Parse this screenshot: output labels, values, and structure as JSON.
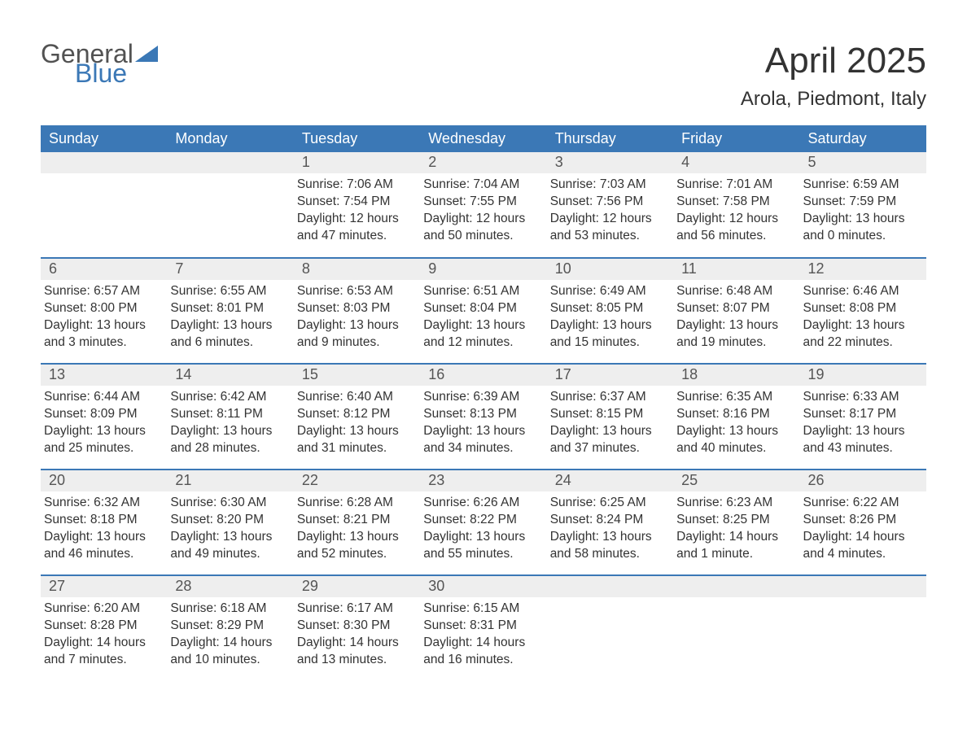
{
  "logo": {
    "text_general": "General",
    "text_blue": "Blue",
    "triangle_color": "#3b78b6"
  },
  "title": "April 2025",
  "subtitle": "Arola, Piedmont, Italy",
  "colors": {
    "header_bg": "#3b78b6",
    "header_fg": "#ffffff",
    "daynum_bg": "#eeeeee",
    "border": "#3b78b6",
    "body_text": "#333333",
    "logo_gray": "#525252",
    "logo_blue": "#3b78b6",
    "page_bg": "#ffffff"
  },
  "typography": {
    "title_fontsize": 44,
    "subtitle_fontsize": 24,
    "header_fontsize": 18,
    "daynum_fontsize": 18,
    "body_fontsize": 15.5,
    "font_family": "Segoe UI"
  },
  "columns": [
    "Sunday",
    "Monday",
    "Tuesday",
    "Wednesday",
    "Thursday",
    "Friday",
    "Saturday"
  ],
  "weeks": [
    [
      {
        "day": "",
        "sunrise": "",
        "sunset": "",
        "daylight1": "",
        "daylight2": "",
        "empty": true
      },
      {
        "day": "",
        "sunrise": "",
        "sunset": "",
        "daylight1": "",
        "daylight2": "",
        "empty": true
      },
      {
        "day": "1",
        "sunrise": "Sunrise: 7:06 AM",
        "sunset": "Sunset: 7:54 PM",
        "daylight1": "Daylight: 12 hours",
        "daylight2": "and 47 minutes."
      },
      {
        "day": "2",
        "sunrise": "Sunrise: 7:04 AM",
        "sunset": "Sunset: 7:55 PM",
        "daylight1": "Daylight: 12 hours",
        "daylight2": "and 50 minutes."
      },
      {
        "day": "3",
        "sunrise": "Sunrise: 7:03 AM",
        "sunset": "Sunset: 7:56 PM",
        "daylight1": "Daylight: 12 hours",
        "daylight2": "and 53 minutes."
      },
      {
        "day": "4",
        "sunrise": "Sunrise: 7:01 AM",
        "sunset": "Sunset: 7:58 PM",
        "daylight1": "Daylight: 12 hours",
        "daylight2": "and 56 minutes."
      },
      {
        "day": "5",
        "sunrise": "Sunrise: 6:59 AM",
        "sunset": "Sunset: 7:59 PM",
        "daylight1": "Daylight: 13 hours",
        "daylight2": "and 0 minutes."
      }
    ],
    [
      {
        "day": "6",
        "sunrise": "Sunrise: 6:57 AM",
        "sunset": "Sunset: 8:00 PM",
        "daylight1": "Daylight: 13 hours",
        "daylight2": "and 3 minutes."
      },
      {
        "day": "7",
        "sunrise": "Sunrise: 6:55 AM",
        "sunset": "Sunset: 8:01 PM",
        "daylight1": "Daylight: 13 hours",
        "daylight2": "and 6 minutes."
      },
      {
        "day": "8",
        "sunrise": "Sunrise: 6:53 AM",
        "sunset": "Sunset: 8:03 PM",
        "daylight1": "Daylight: 13 hours",
        "daylight2": "and 9 minutes."
      },
      {
        "day": "9",
        "sunrise": "Sunrise: 6:51 AM",
        "sunset": "Sunset: 8:04 PM",
        "daylight1": "Daylight: 13 hours",
        "daylight2": "and 12 minutes."
      },
      {
        "day": "10",
        "sunrise": "Sunrise: 6:49 AM",
        "sunset": "Sunset: 8:05 PM",
        "daylight1": "Daylight: 13 hours",
        "daylight2": "and 15 minutes."
      },
      {
        "day": "11",
        "sunrise": "Sunrise: 6:48 AM",
        "sunset": "Sunset: 8:07 PM",
        "daylight1": "Daylight: 13 hours",
        "daylight2": "and 19 minutes."
      },
      {
        "day": "12",
        "sunrise": "Sunrise: 6:46 AM",
        "sunset": "Sunset: 8:08 PM",
        "daylight1": "Daylight: 13 hours",
        "daylight2": "and 22 minutes."
      }
    ],
    [
      {
        "day": "13",
        "sunrise": "Sunrise: 6:44 AM",
        "sunset": "Sunset: 8:09 PM",
        "daylight1": "Daylight: 13 hours",
        "daylight2": "and 25 minutes."
      },
      {
        "day": "14",
        "sunrise": "Sunrise: 6:42 AM",
        "sunset": "Sunset: 8:11 PM",
        "daylight1": "Daylight: 13 hours",
        "daylight2": "and 28 minutes."
      },
      {
        "day": "15",
        "sunrise": "Sunrise: 6:40 AM",
        "sunset": "Sunset: 8:12 PM",
        "daylight1": "Daylight: 13 hours",
        "daylight2": "and 31 minutes."
      },
      {
        "day": "16",
        "sunrise": "Sunrise: 6:39 AM",
        "sunset": "Sunset: 8:13 PM",
        "daylight1": "Daylight: 13 hours",
        "daylight2": "and 34 minutes."
      },
      {
        "day": "17",
        "sunrise": "Sunrise: 6:37 AM",
        "sunset": "Sunset: 8:15 PM",
        "daylight1": "Daylight: 13 hours",
        "daylight2": "and 37 minutes."
      },
      {
        "day": "18",
        "sunrise": "Sunrise: 6:35 AM",
        "sunset": "Sunset: 8:16 PM",
        "daylight1": "Daylight: 13 hours",
        "daylight2": "and 40 minutes."
      },
      {
        "day": "19",
        "sunrise": "Sunrise: 6:33 AM",
        "sunset": "Sunset: 8:17 PM",
        "daylight1": "Daylight: 13 hours",
        "daylight2": "and 43 minutes."
      }
    ],
    [
      {
        "day": "20",
        "sunrise": "Sunrise: 6:32 AM",
        "sunset": "Sunset: 8:18 PM",
        "daylight1": "Daylight: 13 hours",
        "daylight2": "and 46 minutes."
      },
      {
        "day": "21",
        "sunrise": "Sunrise: 6:30 AM",
        "sunset": "Sunset: 8:20 PM",
        "daylight1": "Daylight: 13 hours",
        "daylight2": "and 49 minutes."
      },
      {
        "day": "22",
        "sunrise": "Sunrise: 6:28 AM",
        "sunset": "Sunset: 8:21 PM",
        "daylight1": "Daylight: 13 hours",
        "daylight2": "and 52 minutes."
      },
      {
        "day": "23",
        "sunrise": "Sunrise: 6:26 AM",
        "sunset": "Sunset: 8:22 PM",
        "daylight1": "Daylight: 13 hours",
        "daylight2": "and 55 minutes."
      },
      {
        "day": "24",
        "sunrise": "Sunrise: 6:25 AM",
        "sunset": "Sunset: 8:24 PM",
        "daylight1": "Daylight: 13 hours",
        "daylight2": "and 58 minutes."
      },
      {
        "day": "25",
        "sunrise": "Sunrise: 6:23 AM",
        "sunset": "Sunset: 8:25 PM",
        "daylight1": "Daylight: 14 hours",
        "daylight2": "and 1 minute."
      },
      {
        "day": "26",
        "sunrise": "Sunrise: 6:22 AM",
        "sunset": "Sunset: 8:26 PM",
        "daylight1": "Daylight: 14 hours",
        "daylight2": "and 4 minutes."
      }
    ],
    [
      {
        "day": "27",
        "sunrise": "Sunrise: 6:20 AM",
        "sunset": "Sunset: 8:28 PM",
        "daylight1": "Daylight: 14 hours",
        "daylight2": "and 7 minutes."
      },
      {
        "day": "28",
        "sunrise": "Sunrise: 6:18 AM",
        "sunset": "Sunset: 8:29 PM",
        "daylight1": "Daylight: 14 hours",
        "daylight2": "and 10 minutes."
      },
      {
        "day": "29",
        "sunrise": "Sunrise: 6:17 AM",
        "sunset": "Sunset: 8:30 PM",
        "daylight1": "Daylight: 14 hours",
        "daylight2": "and 13 minutes."
      },
      {
        "day": "30",
        "sunrise": "Sunrise: 6:15 AM",
        "sunset": "Sunset: 8:31 PM",
        "daylight1": "Daylight: 14 hours",
        "daylight2": "and 16 minutes."
      },
      {
        "day": "",
        "sunrise": "",
        "sunset": "",
        "daylight1": "",
        "daylight2": "",
        "empty": true
      },
      {
        "day": "",
        "sunrise": "",
        "sunset": "",
        "daylight1": "",
        "daylight2": "",
        "empty": true
      },
      {
        "day": "",
        "sunrise": "",
        "sunset": "",
        "daylight1": "",
        "daylight2": "",
        "empty": true
      }
    ]
  ]
}
